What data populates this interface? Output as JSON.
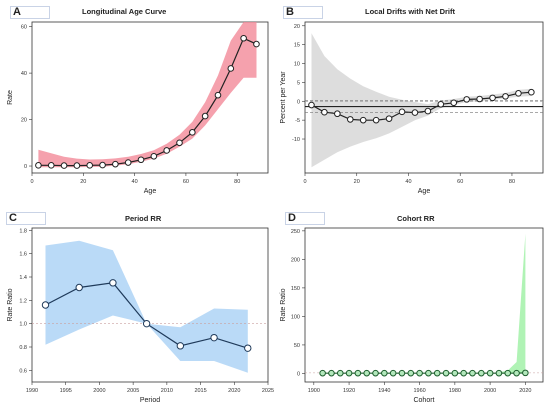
{
  "chart_data": [
    {
      "id": "A",
      "type": "line",
      "panel_label": "A",
      "title": "Longitudinal Age Curve",
      "xlabel": "Age",
      "ylabel": "Rate",
      "xlim": [
        0,
        92
      ],
      "ylim": [
        -3,
        62
      ],
      "xticks": [
        0,
        20,
        40,
        60,
        80
      ],
      "yticks": [
        0,
        20,
        40,
        60
      ],
      "band_color": "#f28a99",
      "line_color": "#222222",
      "x": [
        2.5,
        7.5,
        12.5,
        17.5,
        22.5,
        27.5,
        32.5,
        37.5,
        42.5,
        47.5,
        52.5,
        57.5,
        62.5,
        67.5,
        72.5,
        77.5,
        82.5,
        87.5
      ],
      "y": [
        0.3,
        0.3,
        0.2,
        0.2,
        0.3,
        0.4,
        0.8,
        1.5,
        2.7,
        4.2,
        6.7,
        10.0,
        14.5,
        21.5,
        30.5,
        42.0,
        55.0,
        52.5
      ],
      "lower": [
        -0.5,
        -0.5,
        -0.5,
        -0.5,
        -0.4,
        -0.3,
        0.2,
        0.8,
        1.8,
        3.2,
        5.3,
        8.3,
        11.8,
        17.5,
        24.5,
        31.5,
        38.0,
        38.0
      ],
      "upper": [
        7.0,
        5.5,
        4.0,
        3.2,
        2.8,
        2.9,
        3.3,
        4.0,
        5.2,
        6.8,
        9.6,
        13.5,
        19.0,
        27.5,
        39.0,
        54.0,
        75.0,
        73.5
      ],
      "grid": false
    },
    {
      "id": "B",
      "type": "line",
      "panel_label": "B",
      "title": "Local Drifts with Net Drift",
      "xlabel": "Age",
      "ylabel": "Percent per Year",
      "xlim": [
        0,
        92
      ],
      "ylim": [
        -19,
        21
      ],
      "xticks": [
        0,
        20,
        40,
        60,
        80
      ],
      "yticks": [
        -10,
        -5,
        0,
        5,
        10,
        15,
        20
      ],
      "band_color": "#d4d4d4",
      "line_color": "#222222",
      "x": [
        2.5,
        7.5,
        12.5,
        17.5,
        22.5,
        27.5,
        32.5,
        37.5,
        42.5,
        47.5,
        52.5,
        57.5,
        62.5,
        67.5,
        72.5,
        77.5,
        82.5,
        87.5
      ],
      "y": [
        -1.0,
        -2.9,
        -3.3,
        -4.8,
        -5.0,
        -5.0,
        -4.6,
        -2.8,
        -3.0,
        -2.6,
        -0.8,
        -0.4,
        0.5,
        0.6,
        0.9,
        1.3,
        2.1,
        2.4
      ],
      "lower": [
        -17.5,
        -15.5,
        -13.5,
        -12.0,
        -10.8,
        -9.8,
        -8.5,
        -6.8,
        -5.0,
        -3.8,
        -1.8,
        -1.0,
        -0.2,
        0.0,
        0.4,
        0.8,
        1.2,
        1.4
      ],
      "upper": [
        18.0,
        12.0,
        8.5,
        6.0,
        4.0,
        2.5,
        1.2,
        0.4,
        -0.2,
        -0.8,
        0.2,
        0.6,
        1.2,
        1.4,
        1.8,
        2.2,
        3.0,
        3.3
      ],
      "net_drift": -1.4,
      "net_drift_lower": -3.0,
      "net_drift_upper": 0.2,
      "zero_line": 0,
      "grid": false
    },
    {
      "id": "C",
      "type": "line",
      "panel_label": "C",
      "title": "Period RR",
      "xlabel": "Period",
      "ylabel": "Rate Ratio",
      "xlim": [
        1990,
        2025
      ],
      "ylim": [
        0.5,
        1.82
      ],
      "xticks": [
        1990,
        1995,
        2000,
        2005,
        2010,
        2015,
        2020,
        2025
      ],
      "yticks": [
        0.6,
        0.8,
        1.0,
        1.2,
        1.4,
        1.6,
        1.8
      ],
      "band_color": "#a9d1f5",
      "line_color": "#1f3a5a",
      "x": [
        1992,
        1997,
        2002,
        2007,
        2012,
        2017,
        2022
      ],
      "y": [
        1.16,
        1.31,
        1.35,
        1.0,
        0.81,
        0.88,
        0.79
      ],
      "lower": [
        0.82,
        0.95,
        1.07,
        1.0,
        0.68,
        0.68,
        0.58
      ],
      "upper": [
        1.67,
        1.71,
        1.63,
        1.0,
        0.97,
        1.13,
        1.12
      ],
      "ref_line": 1.0,
      "grid": false
    },
    {
      "id": "D",
      "type": "line",
      "panel_label": "D",
      "title": "Cohort RR",
      "xlabel": "Cohort",
      "ylabel": "Rate Ratio",
      "xlim": [
        1895,
        2030
      ],
      "ylim": [
        -15,
        255
      ],
      "xticks": [
        1900,
        1920,
        1940,
        1960,
        1980,
        2000,
        2020
      ],
      "yticks": [
        0,
        50,
        100,
        150,
        200,
        250
      ],
      "band_color": "#9cf0a2",
      "line_color": "#1e5e2e",
      "point_fill": "#b3e8bc",
      "x": [
        1905,
        1910,
        1915,
        1920,
        1925,
        1930,
        1935,
        1940,
        1945,
        1950,
        1955,
        1960,
        1965,
        1970,
        1975,
        1980,
        1985,
        1990,
        1995,
        2000,
        2005,
        2010,
        2015,
        2020
      ],
      "y": [
        0.5,
        0.5,
        0.5,
        0.5,
        0.5,
        0.5,
        0.5,
        0.5,
        0.5,
        0.5,
        0.5,
        0.5,
        0.5,
        0.5,
        0.5,
        0.5,
        0.5,
        0.5,
        0.5,
        0.5,
        0.5,
        0.5,
        0.5,
        1.0
      ],
      "lower": [
        0.5,
        0.5,
        0.5,
        0.5,
        0.5,
        0.5,
        0.5,
        0.5,
        0.5,
        0.5,
        0.5,
        0.5,
        0.5,
        0.5,
        0.5,
        0.5,
        0.5,
        0.5,
        0.5,
        0.5,
        0.3,
        0.2,
        0.1,
        0.1
      ],
      "upper": [
        0.5,
        0.5,
        0.5,
        0.5,
        0.5,
        0.5,
        0.5,
        0.5,
        0.5,
        0.5,
        0.5,
        0.5,
        0.5,
        0.5,
        0.5,
        0.5,
        0.5,
        0.5,
        0.5,
        0.5,
        2.0,
        5.0,
        20.0,
        245.0
      ],
      "ref_line": 1.0,
      "grid": false
    }
  ]
}
